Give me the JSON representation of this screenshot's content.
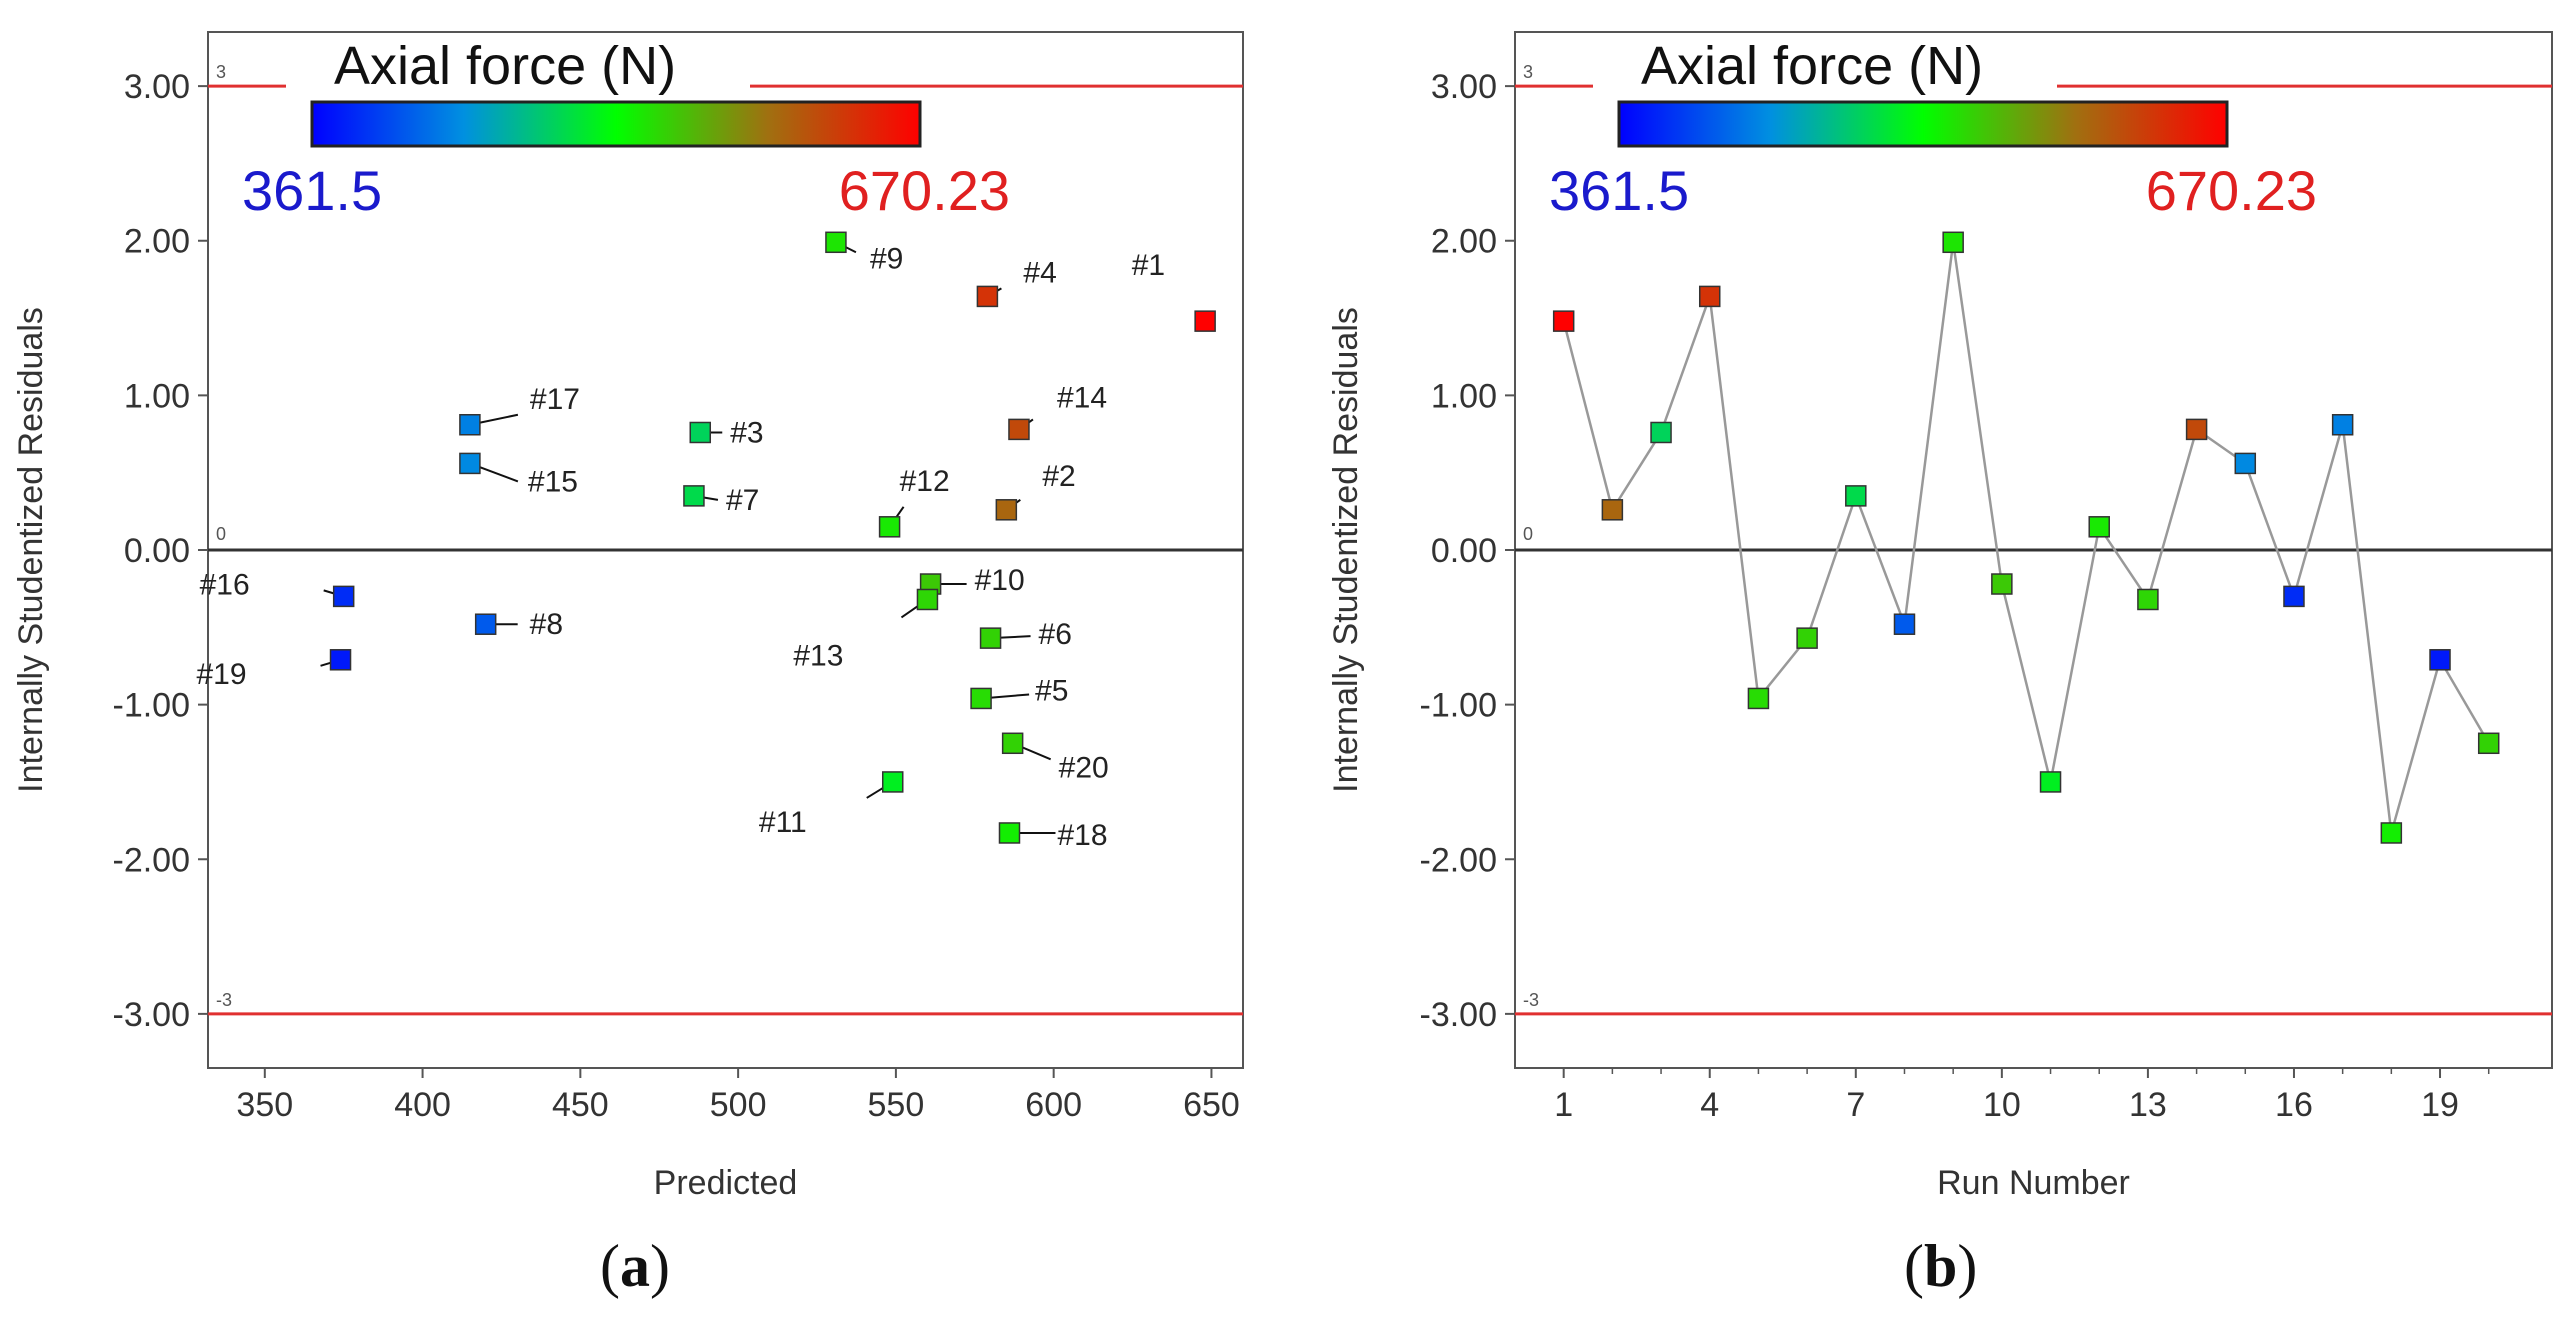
{
  "captions": {
    "a": {
      "open": "(",
      "letter": "a",
      "close": ")"
    },
    "b": {
      "open": "(",
      "letter": "b",
      "close": ")"
    }
  },
  "colors": {
    "low": "#0000ff",
    "mid": "#00ff00",
    "high": "#ff0000",
    "limit_line": "#e03030",
    "zero_line": "#333333",
    "connector": "#999999",
    "low_label": "#1a1acc",
    "high_label": "#e02020"
  },
  "chart_data": [
    {
      "id": "a",
      "type": "scatter",
      "xlabel": "Predicted",
      "ylabel": "Internally Studentized Residuals",
      "xlim": [
        332,
        660
      ],
      "ylim": [
        -3.35,
        3.35
      ],
      "xticks": [
        350,
        400,
        450,
        500,
        550,
        600,
        650
      ],
      "yticks": [
        3,
        2,
        1,
        0,
        -1,
        -2,
        -3
      ],
      "ytick_labels": [
        "3.00",
        "2.00",
        "1.00",
        "0.00",
        "-1.00",
        "-2.00",
        "-3.00"
      ],
      "limit_labels": {
        "upper": "3",
        "zero": "0",
        "lower": "-3"
      },
      "limits": [
        3,
        0,
        -3
      ],
      "colorbar": {
        "title": "Axial force (N)",
        "min_label": "361.5",
        "max_label": "670.23",
        "min": 361.5,
        "max": 670.23
      },
      "points": [
        {
          "run": 1,
          "label": "#1",
          "x": 648,
          "y": 1.48,
          "force": 670.23
        },
        {
          "run": 2,
          "label": "#2",
          "x": 585,
          "y": 0.26,
          "force": 600
        },
        {
          "run": 3,
          "label": "#3",
          "x": 488,
          "y": 0.76,
          "force": 485
        },
        {
          "run": 4,
          "label": "#4",
          "x": 579,
          "y": 1.64,
          "force": 635
        },
        {
          "run": 5,
          "label": "#5",
          "x": 577,
          "y": -0.96,
          "force": 535
        },
        {
          "run": 6,
          "label": "#6",
          "x": 580,
          "y": -0.57,
          "force": 540
        },
        {
          "run": 7,
          "label": "#7",
          "x": 486,
          "y": 0.35,
          "force": 490
        },
        {
          "run": 8,
          "label": "#8",
          "x": 420,
          "y": -0.48,
          "force": 410
        },
        {
          "run": 9,
          "label": "#9",
          "x": 531,
          "y": 1.99,
          "force": 530
        },
        {
          "run": 10,
          "label": "#10",
          "x": 561,
          "y": -0.22,
          "force": 545
        },
        {
          "run": 11,
          "label": "#11",
          "x": 549,
          "y": -1.5,
          "force": 505
        },
        {
          "run": 12,
          "label": "#12",
          "x": 548,
          "y": 0.15,
          "force": 528
        },
        {
          "run": 13,
          "label": "#13",
          "x": 560,
          "y": -0.32,
          "force": 538
        },
        {
          "run": 14,
          "label": "#14",
          "x": 589,
          "y": 0.78,
          "force": 620
        },
        {
          "run": 15,
          "label": "#15",
          "x": 415,
          "y": 0.56,
          "force": 435
        },
        {
          "run": 16,
          "label": "#16",
          "x": 375,
          "y": -0.3,
          "force": 385
        },
        {
          "run": 17,
          "label": "#17",
          "x": 415,
          "y": 0.81,
          "force": 430
        },
        {
          "run": 18,
          "label": "#18",
          "x": 586,
          "y": -1.83,
          "force": 525
        },
        {
          "run": 19,
          "label": "#19",
          "x": 374,
          "y": -0.71,
          "force": 375
        },
        {
          "run": 20,
          "label": "#20",
          "x": 587,
          "y": -1.25,
          "force": 540
        }
      ]
    },
    {
      "id": "b",
      "type": "line",
      "xlabel": "Run Number",
      "ylabel": "Internally Studentized Residuals",
      "xlim": [
        0,
        21.3
      ],
      "ylim": [
        -3.35,
        3.35
      ],
      "xticks": [
        1,
        4,
        7,
        10,
        13,
        16,
        19
      ],
      "yticks": [
        3,
        2,
        1,
        0,
        -1,
        -2,
        -3
      ],
      "ytick_labels": [
        "3.00",
        "2.00",
        "1.00",
        "0.00",
        "-1.00",
        "-2.00",
        "-3.00"
      ],
      "limit_labels": {
        "upper": "3",
        "zero": "0",
        "lower": "-3"
      },
      "limits": [
        3,
        0,
        -3
      ],
      "colorbar": {
        "title": "Axial force (N)",
        "min_label": "361.5",
        "max_label": "670.23",
        "min": 361.5,
        "max": 670.23
      },
      "x": [
        1,
        2,
        3,
        4,
        5,
        6,
        7,
        8,
        9,
        10,
        11,
        12,
        13,
        14,
        15,
        16,
        17,
        18,
        19,
        20
      ],
      "y": [
        1.48,
        0.26,
        0.76,
        1.64,
        -0.96,
        -0.57,
        0.35,
        -0.48,
        1.99,
        -0.22,
        -1.5,
        0.15,
        -0.32,
        0.78,
        0.56,
        -0.3,
        0.81,
        -1.83,
        -0.71,
        -1.25
      ],
      "force": [
        670.23,
        600,
        485,
        635,
        535,
        540,
        490,
        410,
        530,
        545,
        505,
        528,
        538,
        620,
        435,
        385,
        430,
        525,
        375,
        540
      ]
    }
  ]
}
